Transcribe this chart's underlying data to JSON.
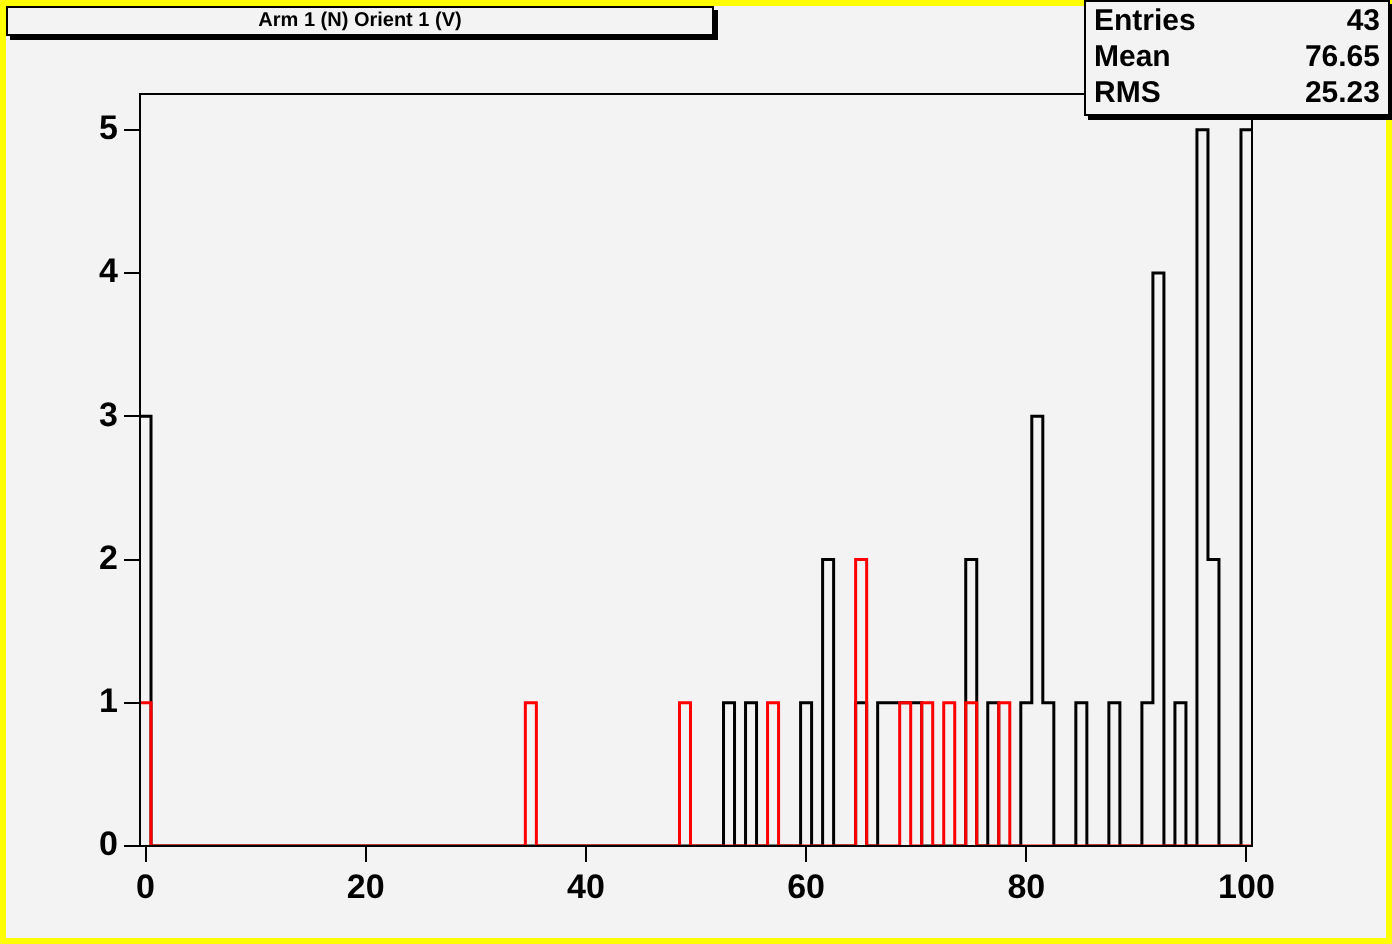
{
  "chart_data": {
    "type": "histogram",
    "title": "Arm 1 (N) Orient 1 (V)",
    "annotations": [
      "Entries",
      "43",
      "Mean",
      "76.65",
      "RMS",
      "25.23"
    ],
    "bins": [
      -0.5,
      0.5,
      1.5,
      2.5,
      3.5,
      4.5,
      5.5,
      6.5,
      7.5,
      8.5,
      9.5,
      10.5,
      11.5,
      12.5,
      13.5,
      14.5,
      15.5,
      16.5,
      17.5,
      18.5,
      19.5,
      20.5,
      21.5,
      22.5,
      23.5,
      24.5,
      25.5,
      26.5,
      27.5,
      28.5,
      29.5,
      30.5,
      31.5,
      32.5,
      33.5,
      34.5,
      35.5,
      36.5,
      37.5,
      38.5,
      39.5,
      40.5,
      41.5,
      42.5,
      43.5,
      44.5,
      45.5,
      46.5,
      47.5,
      48.5,
      49.5,
      50.5,
      51.5,
      52.5,
      53.5,
      54.5,
      55.5,
      56.5,
      57.5,
      58.5,
      59.5,
      60.5,
      61.5,
      62.5,
      63.5,
      64.5,
      65.5,
      66.5,
      67.5,
      68.5,
      69.5,
      70.5,
      71.5,
      72.5,
      73.5,
      74.5,
      75.5,
      76.5,
      77.5,
      78.5,
      79.5,
      80.5,
      81.5,
      82.5,
      83.5,
      84.5,
      85.5,
      86.5,
      87.5,
      88.5,
      89.5,
      90.5,
      91.5,
      92.5,
      93.5,
      94.5,
      95.5,
      96.5,
      97.5,
      98.5,
      99.5,
      100.5
    ],
    "series": [
      {
        "color": "#000000",
        "values": [
          3,
          0,
          0,
          0,
          0,
          0,
          0,
          0,
          0,
          0,
          0,
          0,
          0,
          0,
          0,
          0,
          0,
          0,
          0,
          0,
          0,
          0,
          0,
          0,
          0,
          0,
          0,
          0,
          0,
          0,
          0,
          0,
          0,
          0,
          0,
          0,
          0,
          0,
          0,
          0,
          0,
          0,
          0,
          0,
          0,
          0,
          0,
          0,
          0,
          0,
          0,
          0,
          0,
          1,
          0,
          1,
          0,
          0,
          0,
          0,
          1,
          0,
          2,
          0,
          0,
          1,
          0,
          1,
          1,
          1,
          1,
          0,
          0,
          0,
          0,
          2,
          0,
          1,
          0,
          0,
          1,
          3,
          1,
          0,
          0,
          1,
          0,
          0,
          1,
          0,
          0,
          1,
          4,
          0,
          1,
          0,
          5,
          2,
          0,
          0,
          5
        ]
      },
      {
        "color": "#ff0000",
        "values": [
          1,
          0,
          0,
          0,
          0,
          0,
          0,
          0,
          0,
          0,
          0,
          0,
          0,
          0,
          0,
          0,
          0,
          0,
          0,
          0,
          0,
          0,
          0,
          0,
          0,
          0,
          0,
          0,
          0,
          0,
          0,
          0,
          0,
          0,
          0,
          1,
          0,
          0,
          0,
          0,
          0,
          0,
          0,
          0,
          0,
          0,
          0,
          0,
          0,
          1,
          0,
          0,
          0,
          0,
          0,
          0,
          0,
          1,
          0,
          0,
          0,
          0,
          0,
          0,
          0,
          2,
          0,
          0,
          0,
          1,
          0,
          1,
          0,
          1,
          0,
          1,
          0,
          0,
          1,
          0,
          0,
          0,
          0,
          0,
          0,
          0,
          0,
          0,
          0,
          0,
          0,
          0,
          0,
          0,
          0,
          0,
          0,
          0,
          0,
          0,
          0
        ]
      }
    ],
    "xlim": [
      -0.5,
      100.5
    ],
    "xticks": [
      0,
      20,
      40,
      60,
      80,
      100
    ],
    "ylim": [
      0,
      5.25
    ],
    "yticks": [
      0,
      1,
      2,
      3,
      4,
      5
    ],
    "grid": false,
    "legend": false
  }
}
